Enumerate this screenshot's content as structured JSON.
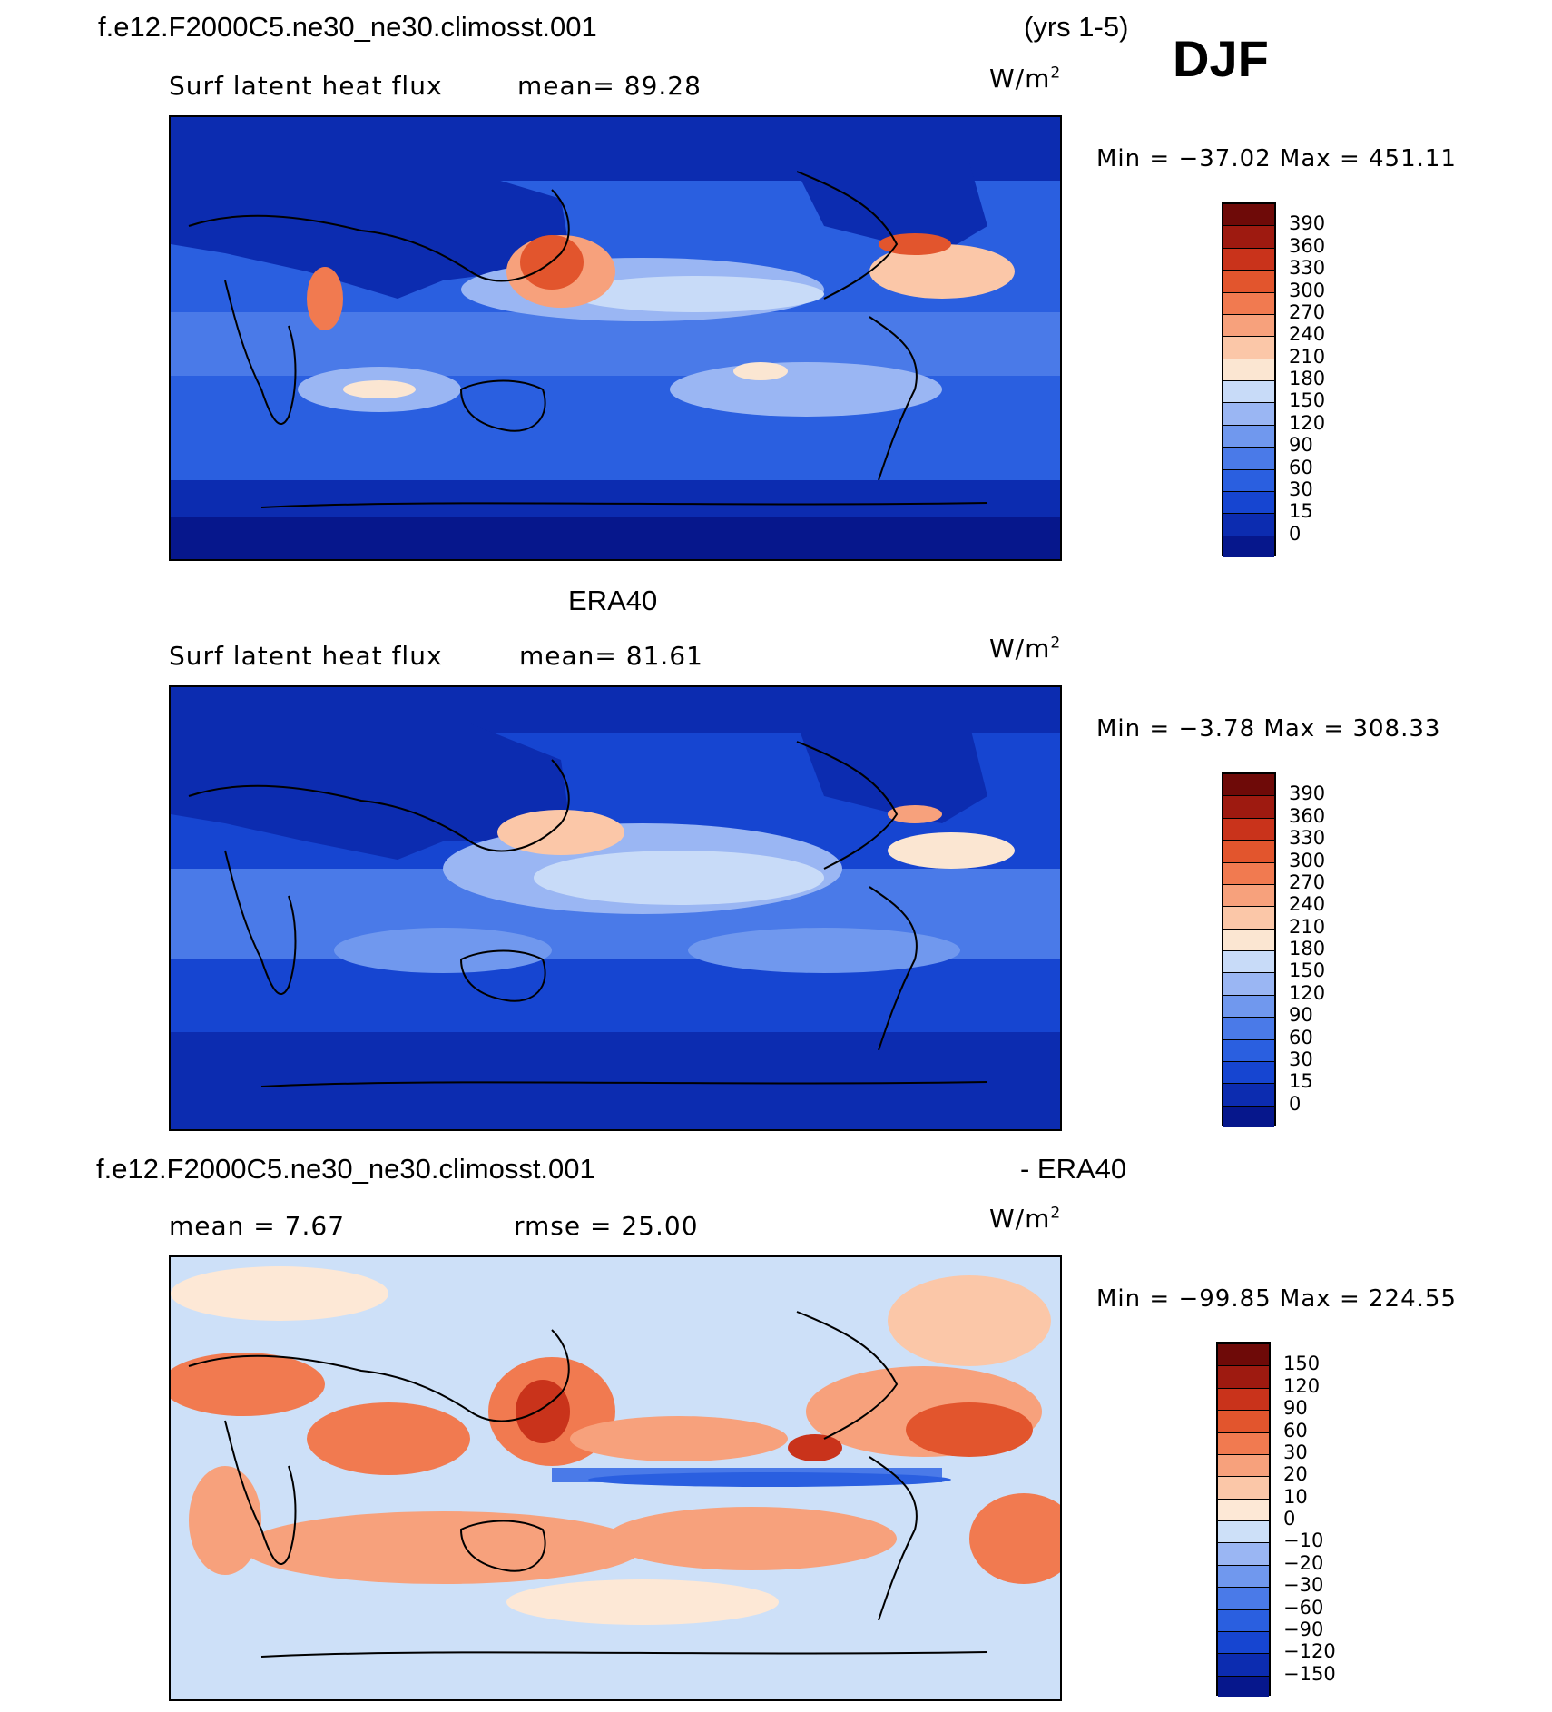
{
  "header": {
    "case_name": "f.e12.F2000C5.ne30_ne30.climosst.001",
    "years": "(yrs 1-5)",
    "season": "DJF"
  },
  "panels": [
    {
      "id": "model",
      "title": "",
      "variable": "Surf latent heat flux",
      "stat": "mean=  89.28",
      "units_base": "W/m",
      "units_exp": "2",
      "minmax": "Min = −37.02 Max = 451.11",
      "colorbar_colors": [
        "#06178c",
        "#0c2cb0",
        "#1645d1",
        "#2a5fe0",
        "#4a7ae8",
        "#7098ee",
        "#9ab6f3",
        "#c8dbf8",
        "#fbe6d2",
        "#fbc7a8",
        "#f7a17c",
        "#f17a50",
        "#e2552d",
        "#c9331b",
        "#9e1a10",
        "#6e0a08"
      ],
      "colorbar_labels": [
        "0",
        "15",
        "30",
        "60",
        "90",
        "120",
        "150",
        "180",
        "210",
        "240",
        "270",
        "300",
        "330",
        "360",
        "390"
      ]
    },
    {
      "id": "obs",
      "title": "ERA40",
      "variable": "Surf latent heat flux",
      "stat": "mean=  81.61",
      "units_base": "W/m",
      "units_exp": "2",
      "minmax": "Min =  −3.78 Max = 308.33",
      "colorbar_colors": [
        "#06178c",
        "#0c2cb0",
        "#1645d1",
        "#2a5fe0",
        "#4a7ae8",
        "#7098ee",
        "#9ab6f3",
        "#c8dbf8",
        "#fbe6d2",
        "#fbc7a8",
        "#f7a17c",
        "#f17a50",
        "#e2552d",
        "#c9331b",
        "#9e1a10",
        "#6e0a08"
      ],
      "colorbar_labels": [
        "0",
        "15",
        "30",
        "60",
        "90",
        "120",
        "150",
        "180",
        "210",
        "240",
        "270",
        "300",
        "330",
        "360",
        "390"
      ]
    },
    {
      "id": "diff",
      "title_left": "f.e12.F2000C5.ne30_ne30.climosst.001",
      "title_right": "- ERA40",
      "stat_left": "mean =   7.67",
      "stat_right": "rmse =  25.00",
      "units_base": "W/m",
      "units_exp": "2",
      "minmax": "Min = −99.85 Max = 224.55",
      "colorbar_colors": [
        "#06178c",
        "#0c2cb0",
        "#1645d1",
        "#2a5fe0",
        "#4a7ae8",
        "#7098ee",
        "#9ab6f3",
        "#cde0f8",
        "#fde8d6",
        "#fbc7a8",
        "#f7a17c",
        "#f17a50",
        "#e2552d",
        "#c9331b",
        "#9e1a10",
        "#6e0a08"
      ],
      "colorbar_labels": [
        "−150",
        "−120",
        "−90",
        "−60",
        "−30",
        "−20",
        "−10",
        "0",
        "10",
        "20",
        "30",
        "60",
        "90",
        "120",
        "150"
      ]
    }
  ]
}
